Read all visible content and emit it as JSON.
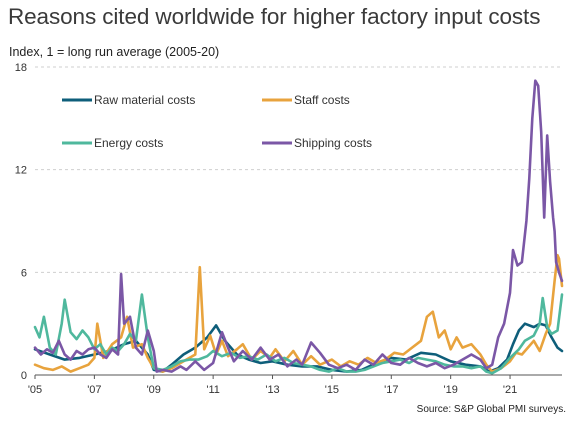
{
  "title": "Reasons cited worldwide for higher factory input costs",
  "subtitle": "Index, 1 = long run average (2005-20)",
  "source": "Source: S&P Global PMI surveys.",
  "chart_data": {
    "type": "line",
    "title": "Reasons cited worldwide for higher factory input costs",
    "ylabel": "Index, 1 = long run average (2005-20)",
    "xlim": [
      2005,
      2022.75
    ],
    "ylim": [
      0,
      18
    ],
    "yticks": [
      0,
      6,
      12,
      18
    ],
    "xticks": [
      2005,
      2007,
      2009,
      2011,
      2013,
      2015,
      2017,
      2019,
      2021
    ],
    "xtick_labels": [
      "'05",
      "'07",
      "'09",
      "'11",
      "'13",
      "'15",
      "'17",
      "'19",
      "'21"
    ],
    "grid": true,
    "legend_position": "top-left",
    "series": [
      {
        "name": "Raw material costs",
        "color": "#0e5e7a",
        "points": [
          [
            2005.0,
            1.5
          ],
          [
            2005.5,
            1.2
          ],
          [
            2006.0,
            0.9
          ],
          [
            2006.5,
            1.0
          ],
          [
            2007.0,
            1.2
          ],
          [
            2007.5,
            1.4
          ],
          [
            2008.0,
            1.8
          ],
          [
            2008.4,
            2.0
          ],
          [
            2008.8,
            1.2
          ],
          [
            2009.0,
            0.3
          ],
          [
            2009.3,
            0.2
          ],
          [
            2009.6,
            0.6
          ],
          [
            2010.0,
            1.2
          ],
          [
            2010.4,
            1.6
          ],
          [
            2010.8,
            2.2
          ],
          [
            2011.1,
            2.9
          ],
          [
            2011.4,
            2.0
          ],
          [
            2011.8,
            1.2
          ],
          [
            2012.2,
            0.9
          ],
          [
            2012.6,
            0.7
          ],
          [
            2013.0,
            0.8
          ],
          [
            2013.5,
            0.6
          ],
          [
            2014.0,
            0.5
          ],
          [
            2014.5,
            0.5
          ],
          [
            2015.0,
            0.3
          ],
          [
            2015.5,
            0.2
          ],
          [
            2016.0,
            0.3
          ],
          [
            2016.5,
            0.7
          ],
          [
            2017.0,
            1.0
          ],
          [
            2017.5,
            0.9
          ],
          [
            2018.0,
            1.3
          ],
          [
            2018.5,
            1.2
          ],
          [
            2019.0,
            0.8
          ],
          [
            2019.5,
            0.6
          ],
          [
            2020.0,
            0.5
          ],
          [
            2020.3,
            0.2
          ],
          [
            2020.6,
            0.4
          ],
          [
            2020.9,
            0.9
          ],
          [
            2021.1,
            1.8
          ],
          [
            2021.3,
            2.6
          ],
          [
            2021.5,
            3.0
          ],
          [
            2021.8,
            2.8
          ],
          [
            2022.0,
            3.0
          ],
          [
            2022.2,
            2.9
          ],
          [
            2022.4,
            2.2
          ],
          [
            2022.6,
            1.6
          ],
          [
            2022.75,
            1.4
          ]
        ]
      },
      {
        "name": "Staff costs",
        "color": "#e8a33d",
        "points": [
          [
            2005.0,
            0.6
          ],
          [
            2005.3,
            0.4
          ],
          [
            2005.6,
            0.3
          ],
          [
            2005.9,
            0.5
          ],
          [
            2006.2,
            0.2
          ],
          [
            2006.5,
            0.4
          ],
          [
            2006.8,
            0.6
          ],
          [
            2007.0,
            1.0
          ],
          [
            2007.1,
            3.0
          ],
          [
            2007.3,
            1.0
          ],
          [
            2007.6,
            1.8
          ],
          [
            2007.9,
            2.2
          ],
          [
            2008.1,
            3.4
          ],
          [
            2008.3,
            1.6
          ],
          [
            2008.6,
            1.8
          ],
          [
            2008.8,
            1.0
          ],
          [
            2009.0,
            0.4
          ],
          [
            2009.3,
            0.2
          ],
          [
            2009.6,
            0.4
          ],
          [
            2009.9,
            0.7
          ],
          [
            2010.2,
            1.0
          ],
          [
            2010.4,
            1.2
          ],
          [
            2010.55,
            6.3
          ],
          [
            2010.7,
            1.5
          ],
          [
            2010.9,
            2.3
          ],
          [
            2011.1,
            1.2
          ],
          [
            2011.3,
            2.0
          ],
          [
            2011.5,
            1.1
          ],
          [
            2011.8,
            1.5
          ],
          [
            2012.0,
            1.8
          ],
          [
            2012.3,
            0.9
          ],
          [
            2012.6,
            1.4
          ],
          [
            2012.9,
            1.0
          ],
          [
            2013.1,
            1.5
          ],
          [
            2013.4,
            0.8
          ],
          [
            2013.7,
            1.4
          ],
          [
            2014.0,
            0.6
          ],
          [
            2014.3,
            1.1
          ],
          [
            2014.6,
            0.6
          ],
          [
            2015.0,
            0.9
          ],
          [
            2015.3,
            0.5
          ],
          [
            2015.6,
            0.8
          ],
          [
            2015.9,
            0.6
          ],
          [
            2016.2,
            1.0
          ],
          [
            2016.5,
            0.7
          ],
          [
            2016.8,
            0.9
          ],
          [
            2017.1,
            1.3
          ],
          [
            2017.4,
            1.2
          ],
          [
            2017.7,
            1.6
          ],
          [
            2018.0,
            2.0
          ],
          [
            2018.2,
            3.4
          ],
          [
            2018.4,
            3.7
          ],
          [
            2018.6,
            2.2
          ],
          [
            2018.8,
            2.6
          ],
          [
            2019.0,
            1.5
          ],
          [
            2019.2,
            2.2
          ],
          [
            2019.4,
            1.6
          ],
          [
            2019.7,
            1.8
          ],
          [
            2020.0,
            1.2
          ],
          [
            2020.2,
            0.6
          ],
          [
            2020.4,
            0.2
          ],
          [
            2020.7,
            0.4
          ],
          [
            2021.0,
            0.8
          ],
          [
            2021.2,
            1.3
          ],
          [
            2021.4,
            1.2
          ],
          [
            2021.6,
            1.6
          ],
          [
            2021.8,
            2.0
          ],
          [
            2022.0,
            1.4
          ],
          [
            2022.2,
            2.4
          ],
          [
            2022.35,
            3.0
          ],
          [
            2022.5,
            5.5
          ],
          [
            2022.6,
            7.0
          ],
          [
            2022.65,
            6.8
          ],
          [
            2022.75,
            5.2
          ]
        ]
      },
      {
        "name": "Energy costs",
        "color": "#4fb89d",
        "points": [
          [
            2005.0,
            2.8
          ],
          [
            2005.15,
            2.2
          ],
          [
            2005.3,
            3.4
          ],
          [
            2005.5,
            1.6
          ],
          [
            2005.7,
            1.2
          ],
          [
            2005.9,
            3.0
          ],
          [
            2006.0,
            4.4
          ],
          [
            2006.2,
            2.5
          ],
          [
            2006.4,
            2.1
          ],
          [
            2006.6,
            2.6
          ],
          [
            2006.8,
            2.2
          ],
          [
            2007.0,
            1.5
          ],
          [
            2007.2,
            1.8
          ],
          [
            2007.4,
            1.2
          ],
          [
            2007.6,
            1.6
          ],
          [
            2007.8,
            1.4
          ],
          [
            2008.0,
            1.8
          ],
          [
            2008.2,
            2.4
          ],
          [
            2008.4,
            2.0
          ],
          [
            2008.6,
            4.7
          ],
          [
            2008.8,
            2.2
          ],
          [
            2009.0,
            0.4
          ],
          [
            2009.3,
            0.3
          ],
          [
            2009.6,
            0.5
          ],
          [
            2009.9,
            0.8
          ],
          [
            2010.2,
            0.9
          ],
          [
            2010.5,
            0.9
          ],
          [
            2010.8,
            1.1
          ],
          [
            2011.0,
            1.4
          ],
          [
            2011.3,
            1.1
          ],
          [
            2011.6,
            1.3
          ],
          [
            2011.9,
            1.0
          ],
          [
            2012.2,
            1.1
          ],
          [
            2012.5,
            0.9
          ],
          [
            2012.8,
            1.2
          ],
          [
            2013.1,
            0.8
          ],
          [
            2013.4,
            1.0
          ],
          [
            2013.7,
            0.7
          ],
          [
            2014.0,
            0.6
          ],
          [
            2014.3,
            0.5
          ],
          [
            2014.6,
            0.3
          ],
          [
            2014.9,
            0.2
          ],
          [
            2015.2,
            0.4
          ],
          [
            2015.5,
            0.2
          ],
          [
            2015.8,
            0.2
          ],
          [
            2016.1,
            0.3
          ],
          [
            2016.4,
            0.5
          ],
          [
            2016.7,
            0.7
          ],
          [
            2017.0,
            0.8
          ],
          [
            2017.3,
            0.9
          ],
          [
            2017.6,
            0.7
          ],
          [
            2017.9,
            1.0
          ],
          [
            2018.2,
            0.9
          ],
          [
            2018.5,
            0.8
          ],
          [
            2018.8,
            0.6
          ],
          [
            2019.1,
            0.5
          ],
          [
            2019.4,
            0.5
          ],
          [
            2019.7,
            0.4
          ],
          [
            2020.0,
            0.5
          ],
          [
            2020.2,
            0.2
          ],
          [
            2020.4,
            0.1
          ],
          [
            2020.7,
            0.4
          ],
          [
            2021.0,
            1.0
          ],
          [
            2021.3,
            1.5
          ],
          [
            2021.5,
            2.0
          ],
          [
            2021.8,
            2.3
          ],
          [
            2022.0,
            3.0
          ],
          [
            2022.1,
            4.5
          ],
          [
            2022.25,
            2.8
          ],
          [
            2022.4,
            2.4
          ],
          [
            2022.6,
            2.6
          ],
          [
            2022.75,
            4.7
          ]
        ]
      },
      {
        "name": "Shipping costs",
        "color": "#7b57a6",
        "points": [
          [
            2005.0,
            1.6
          ],
          [
            2005.2,
            1.2
          ],
          [
            2005.4,
            1.5
          ],
          [
            2005.6,
            1.3
          ],
          [
            2005.8,
            2.0
          ],
          [
            2006.0,
            1.2
          ],
          [
            2006.2,
            0.9
          ],
          [
            2006.4,
            1.4
          ],
          [
            2006.6,
            1.2
          ],
          [
            2006.8,
            1.5
          ],
          [
            2007.0,
            1.6
          ],
          [
            2007.2,
            1.2
          ],
          [
            2007.4,
            1.0
          ],
          [
            2007.6,
            1.5
          ],
          [
            2007.8,
            1.2
          ],
          [
            2007.9,
            5.9
          ],
          [
            2008.0,
            3.0
          ],
          [
            2008.2,
            3.4
          ],
          [
            2008.4,
            1.6
          ],
          [
            2008.6,
            1.2
          ],
          [
            2008.8,
            2.6
          ],
          [
            2009.0,
            1.4
          ],
          [
            2009.1,
            0.2
          ],
          [
            2009.3,
            0.3
          ],
          [
            2009.6,
            0.2
          ],
          [
            2009.9,
            0.5
          ],
          [
            2010.1,
            0.3
          ],
          [
            2010.4,
            0.8
          ],
          [
            2010.7,
            0.3
          ],
          [
            2011.0,
            0.7
          ],
          [
            2011.3,
            2.5
          ],
          [
            2011.5,
            1.6
          ],
          [
            2011.7,
            0.8
          ],
          [
            2012.0,
            1.4
          ],
          [
            2012.3,
            0.9
          ],
          [
            2012.6,
            1.6
          ],
          [
            2012.9,
            0.9
          ],
          [
            2013.2,
            1.2
          ],
          [
            2013.5,
            0.5
          ],
          [
            2013.8,
            0.9
          ],
          [
            2014.0,
            0.6
          ],
          [
            2014.3,
            1.9
          ],
          [
            2014.6,
            1.3
          ],
          [
            2014.9,
            0.6
          ],
          [
            2015.2,
            0.4
          ],
          [
            2015.5,
            0.6
          ],
          [
            2015.8,
            0.3
          ],
          [
            2016.1,
            0.9
          ],
          [
            2016.4,
            0.6
          ],
          [
            2016.7,
            1.2
          ],
          [
            2017.0,
            0.7
          ],
          [
            2017.3,
            0.6
          ],
          [
            2017.6,
            1.0
          ],
          [
            2017.9,
            0.7
          ],
          [
            2018.2,
            0.5
          ],
          [
            2018.5,
            0.7
          ],
          [
            2018.8,
            0.4
          ],
          [
            2019.1,
            0.6
          ],
          [
            2019.4,
            0.9
          ],
          [
            2019.7,
            1.2
          ],
          [
            2020.0,
            0.9
          ],
          [
            2020.2,
            0.4
          ],
          [
            2020.4,
            0.6
          ],
          [
            2020.6,
            2.2
          ],
          [
            2020.8,
            3.0
          ],
          [
            2021.0,
            4.8
          ],
          [
            2021.1,
            7.3
          ],
          [
            2021.25,
            6.4
          ],
          [
            2021.4,
            6.6
          ],
          [
            2021.55,
            9.0
          ],
          [
            2021.65,
            11.5
          ],
          [
            2021.75,
            15.0
          ],
          [
            2021.85,
            17.2
          ],
          [
            2021.95,
            16.9
          ],
          [
            2022.05,
            14.2
          ],
          [
            2022.15,
            9.2
          ],
          [
            2022.25,
            14.0
          ],
          [
            2022.35,
            11.3
          ],
          [
            2022.45,
            9.2
          ],
          [
            2022.5,
            8.4
          ],
          [
            2022.55,
            6.6
          ],
          [
            2022.65,
            6.0
          ],
          [
            2022.75,
            5.5
          ]
        ]
      }
    ]
  }
}
